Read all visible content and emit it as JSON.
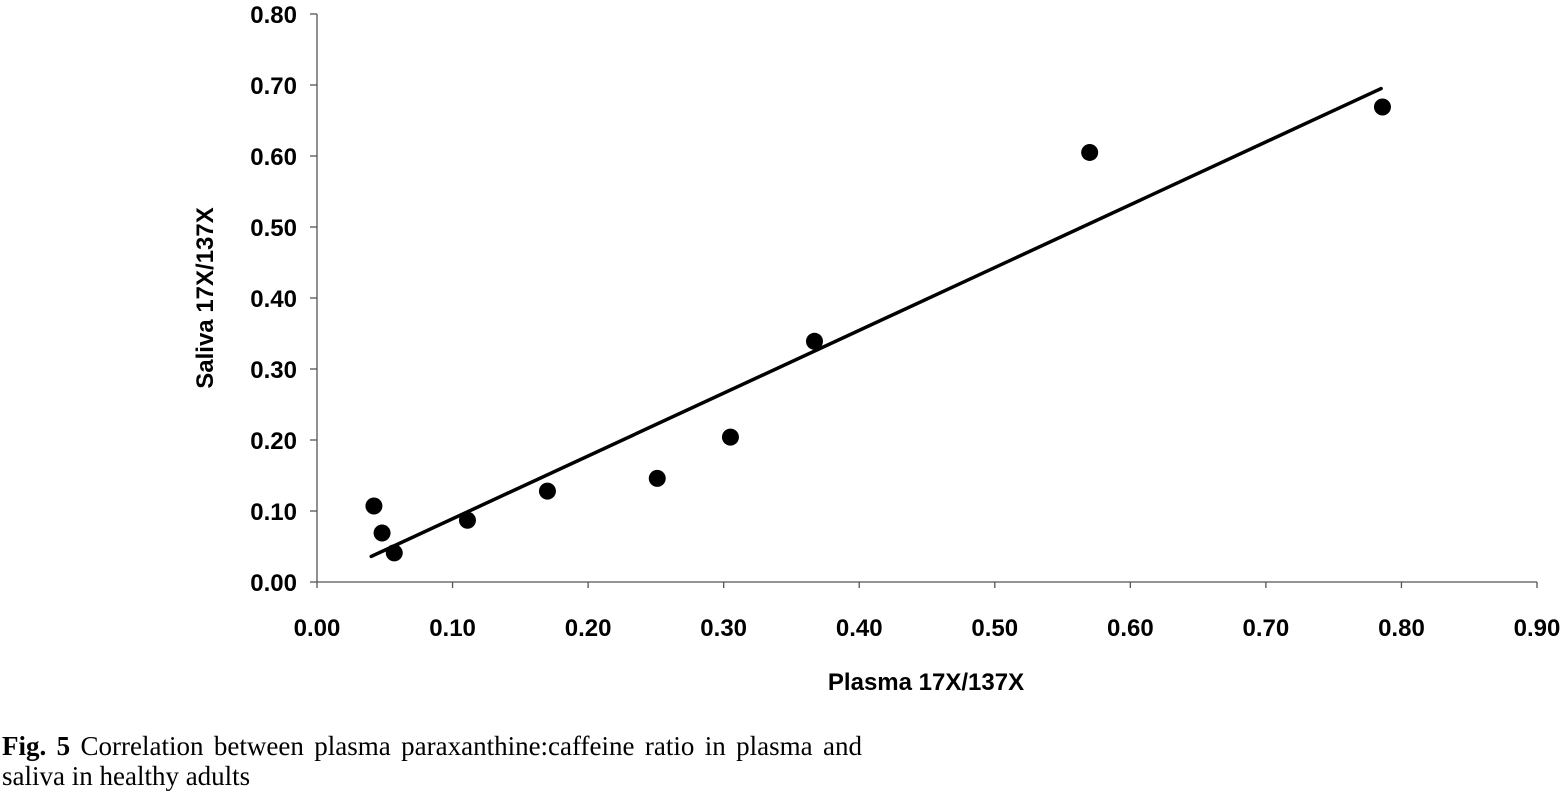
{
  "chart_data": {
    "type": "scatter",
    "xlabel": "Plasma 17X/137X",
    "ylabel": "Saliva 17X/137X",
    "xlim": [
      0,
      0.9
    ],
    "ylim": [
      0,
      0.8
    ],
    "x_ticks": [
      "0.00",
      "0.10",
      "0.20",
      "0.30",
      "0.40",
      "0.50",
      "0.60",
      "0.70",
      "0.80",
      "0.90"
    ],
    "y_ticks": [
      "0.00",
      "0.10",
      "0.20",
      "0.30",
      "0.40",
      "0.50",
      "0.60",
      "0.70",
      "0.80"
    ],
    "grid": false,
    "points": [
      {
        "x": 0.042,
        "y": 0.107
      },
      {
        "x": 0.048,
        "y": 0.069
      },
      {
        "x": 0.057,
        "y": 0.041
      },
      {
        "x": 0.111,
        "y": 0.087
      },
      {
        "x": 0.17,
        "y": 0.128
      },
      {
        "x": 0.251,
        "y": 0.146
      },
      {
        "x": 0.305,
        "y": 0.204
      },
      {
        "x": 0.367,
        "y": 0.339
      },
      {
        "x": 0.57,
        "y": 0.605
      },
      {
        "x": 0.786,
        "y": 0.669
      }
    ],
    "trendline": {
      "x": [
        0.04,
        0.785
      ],
      "y": [
        0.036,
        0.695
      ]
    },
    "colors": {
      "points": "#000000",
      "line": "#000000",
      "axis": "#555555"
    }
  },
  "caption": {
    "label": "Fig. 5",
    "text": "Correlation between plasma paraxanthine:caffeine ratio in plasma and saliva in healthy adults"
  }
}
